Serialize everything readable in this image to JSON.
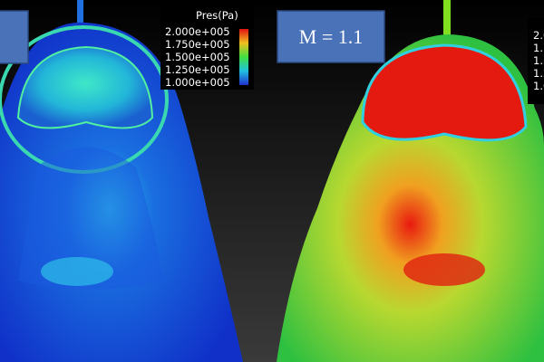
{
  "left_panel": {
    "legend": {
      "title": "Pres(Pa)",
      "labels": [
        "2.000e+005",
        "1.750e+005",
        "1.500e+005",
        "1.250e+005",
        "1.000e+005"
      ]
    }
  },
  "right_panel": {
    "label": "M = 1.1"
  }
}
